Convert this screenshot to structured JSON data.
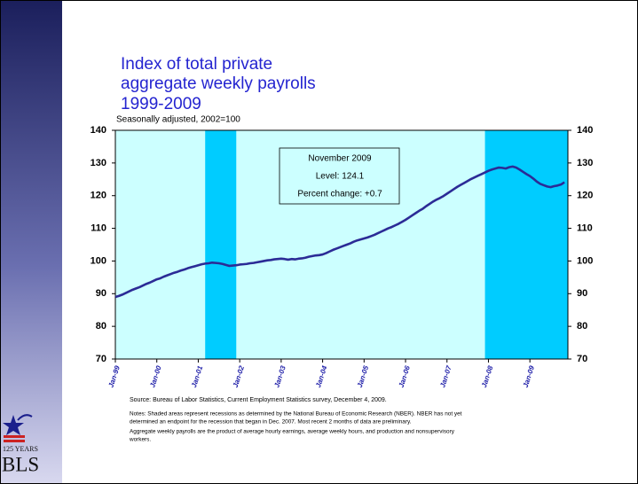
{
  "chart_data": {
    "type": "line",
    "title": [
      "Index of total private",
      "aggregate weekly payrolls",
      "1999-2009"
    ],
    "subtitle": "Seasonally adjusted, 2002=100",
    "categories": [
      "Jan-99",
      null,
      null,
      null,
      null,
      null,
      null,
      null,
      null,
      null,
      null,
      null,
      "Jan-00",
      null,
      null,
      null,
      null,
      null,
      null,
      null,
      null,
      null,
      null,
      null,
      "Jan-01",
      null,
      null,
      null,
      null,
      null,
      null,
      null,
      null,
      null,
      null,
      null,
      "Jan-02",
      null,
      null,
      null,
      null,
      null,
      null,
      null,
      null,
      null,
      null,
      null,
      "Jan-03",
      null,
      null,
      null,
      null,
      null,
      null,
      null,
      null,
      null,
      null,
      null,
      "Jan-04",
      null,
      null,
      null,
      null,
      null,
      null,
      null,
      null,
      null,
      null,
      null,
      "Jan-05",
      null,
      null,
      null,
      null,
      null,
      null,
      null,
      null,
      null,
      null,
      null,
      "Jan-06",
      null,
      null,
      null,
      null,
      null,
      null,
      null,
      null,
      null,
      null,
      null,
      "Jan-07",
      null,
      null,
      null,
      null,
      null,
      null,
      null,
      null,
      null,
      null,
      null,
      "Jan-08",
      null,
      null,
      null,
      null,
      null,
      null,
      null,
      null,
      null,
      null,
      null,
      "Jan-09",
      null,
      null,
      null,
      null,
      null,
      null,
      null,
      null,
      null,
      null
    ],
    "values": [
      89.0,
      89.3,
      89.7,
      90.2,
      90.7,
      91.2,
      91.6,
      92.0,
      92.5,
      93.0,
      93.4,
      93.9,
      94.4,
      94.7,
      95.2,
      95.6,
      96.0,
      96.4,
      96.7,
      97.1,
      97.4,
      97.8,
      98.1,
      98.4,
      98.7,
      99.0,
      99.2,
      99.3,
      99.5,
      99.4,
      99.3,
      99.1,
      98.8,
      98.5,
      98.6,
      98.7,
      98.9,
      99.0,
      99.1,
      99.3,
      99.4,
      99.6,
      99.8,
      100.0,
      100.2,
      100.3,
      100.5,
      100.6,
      100.7,
      100.6,
      100.4,
      100.6,
      100.5,
      100.7,
      100.8,
      101.0,
      101.3,
      101.5,
      101.7,
      101.8,
      102.0,
      102.4,
      102.9,
      103.4,
      103.8,
      104.2,
      104.6,
      105.0,
      105.4,
      105.9,
      106.3,
      106.6,
      106.9,
      107.2,
      107.6,
      108.0,
      108.5,
      109.0,
      109.5,
      110.0,
      110.4,
      110.9,
      111.4,
      112.0,
      112.6,
      113.3,
      114.0,
      114.7,
      115.4,
      116.0,
      116.8,
      117.5,
      118.2,
      118.8,
      119.3,
      119.9,
      120.6,
      121.3,
      122.0,
      122.7,
      123.3,
      123.9,
      124.5,
      125.1,
      125.6,
      126.1,
      126.6,
      127.1,
      127.6,
      128.0,
      128.3,
      128.6,
      128.5,
      128.3,
      128.7,
      128.9,
      128.6,
      128.0,
      127.3,
      126.6,
      126.0,
      125.2,
      124.3,
      123.6,
      123.2,
      122.8,
      122.6,
      122.9,
      123.1,
      123.4,
      124.1
    ],
    "color": "#2b2b96",
    "background_color": "#ccffff",
    "shaded_color": "#00ccff",
    "shaded_periods": [
      [
        26,
        35
      ],
      [
        107,
        131
      ]
    ],
    "ylim": [
      70,
      140
    ],
    "yticks": [
      70,
      80,
      90,
      100,
      110,
      120,
      130,
      140
    ],
    "y2lim": [
      70,
      140
    ],
    "y2ticks": [
      70,
      80,
      90,
      100,
      110,
      120,
      130,
      140
    ],
    "annotation": [
      "November 2009",
      "Level: 124.1",
      "Percent change: +0.7"
    ],
    "source": "Source:  Bureau of Labor Statistics, Current Employment Statistics survey, December 4, 2009.",
    "notes": [
      "Notes: Shaded areas represent recessions as determined by the National Bureau of Economic Research (NBER). NBER has not yet",
      "determined an endpoint for the recession that began in Dec. 2007. Most recent 2 months of data are preliminary.",
      "Aggregate weekly payrolls are the product of average hourly earnings, average weekly hours, and production and nonsupervisory",
      "workers."
    ]
  },
  "logo": {
    "years": "125 YEARS",
    "name": "BLS"
  }
}
